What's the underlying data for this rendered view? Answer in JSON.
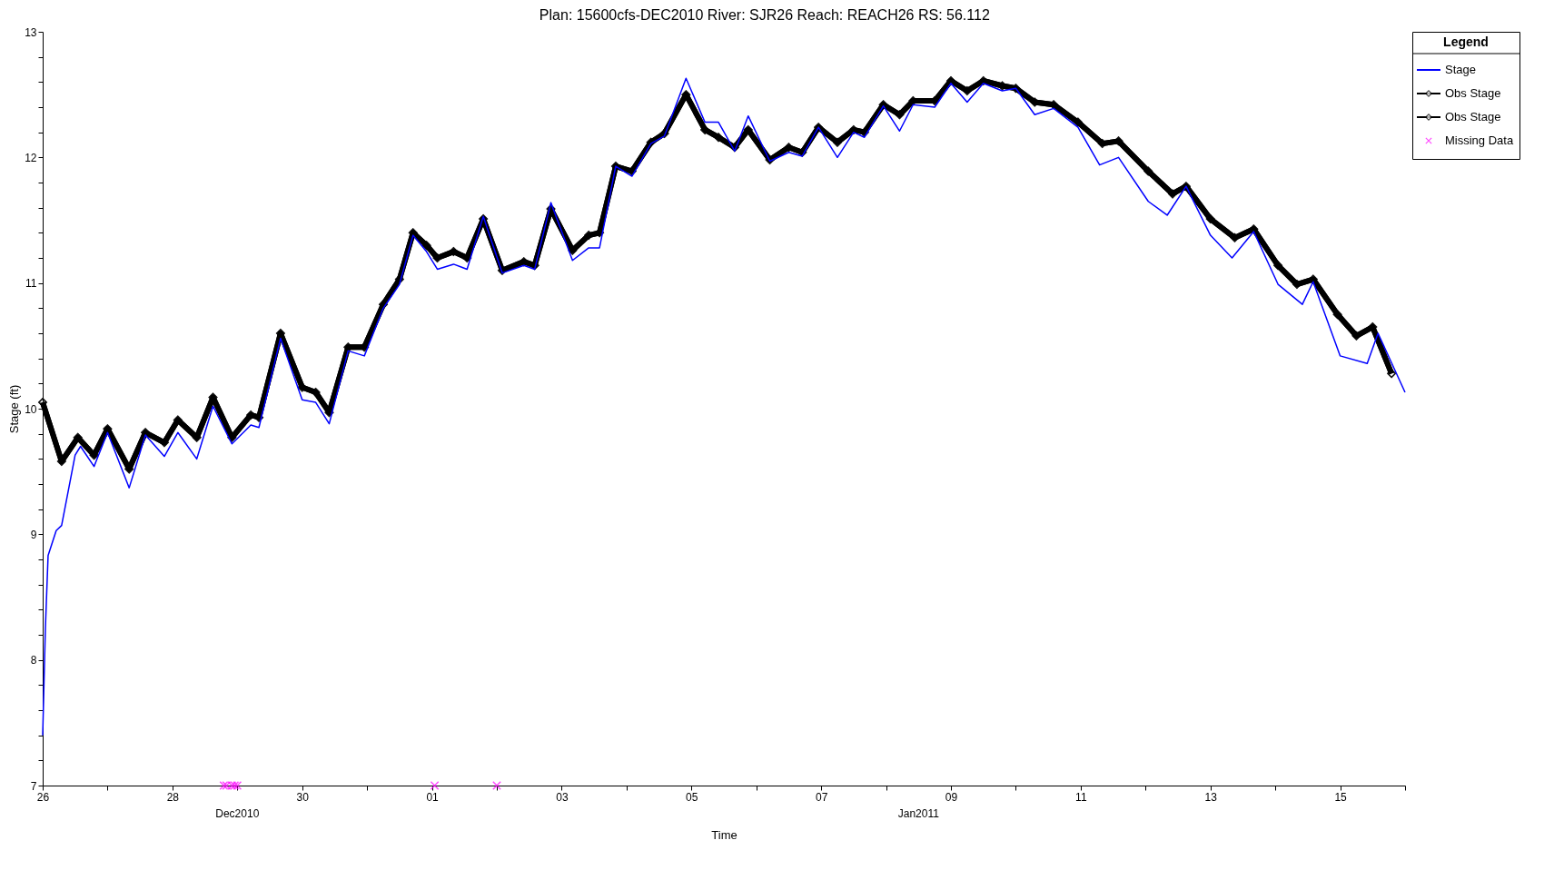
{
  "chart_data": {
    "type": "line",
    "title": "Plan: 15600cfs-DEC2010    River: SJR26    Reach: REACH26    RS: 56.112",
    "xlabel": "Time",
    "ylabel": "Stage (ft)",
    "legend_title": "Legend",
    "legend": "top right",
    "annotations": [
      "Dec2010",
      "Jan2011"
    ],
    "xlim": [
      "2010-12-26T00:00",
      "2011-01-16T00:00"
    ],
    "xticks": [
      {
        "value": "2010-12-26",
        "label": "26"
      },
      {
        "value": "2010-12-27",
        "label": null
      },
      {
        "value": "2010-12-28",
        "label": "28"
      },
      {
        "value": "2010-12-29",
        "label": null
      },
      {
        "value": "2010-12-30",
        "label": "30"
      },
      {
        "value": "2010-12-31",
        "label": null
      },
      {
        "value": "2011-01-01",
        "label": "01"
      },
      {
        "value": "2011-01-02",
        "label": null
      },
      {
        "value": "2011-01-03",
        "label": "03"
      },
      {
        "value": "2011-01-04",
        "label": null
      },
      {
        "value": "2011-01-05",
        "label": "05"
      },
      {
        "value": "2011-01-06",
        "label": null
      },
      {
        "value": "2011-01-07",
        "label": "07"
      },
      {
        "value": "2011-01-08",
        "label": null
      },
      {
        "value": "2011-01-09",
        "label": "09"
      },
      {
        "value": "2011-01-10",
        "label": null
      },
      {
        "value": "2011-01-11",
        "label": "11"
      },
      {
        "value": "2011-01-12",
        "label": null
      },
      {
        "value": "2011-01-13",
        "label": "13"
      },
      {
        "value": "2011-01-14",
        "label": null
      },
      {
        "value": "2011-01-15",
        "label": "15"
      },
      {
        "value": "2011-01-16",
        "label": null
      }
    ],
    "ylim": [
      7,
      13
    ],
    "yticks": [
      7,
      {
        "value": 7.2,
        "label": null
      },
      {
        "value": 7.4,
        "label": null
      },
      {
        "value": 7.6,
        "label": null
      },
      {
        "value": 7.8,
        "label": null
      },
      8,
      {
        "value": 8.2,
        "label": null
      },
      {
        "value": 8.4,
        "label": null
      },
      {
        "value": 8.6,
        "label": null
      },
      {
        "value": 8.8,
        "label": null
      },
      9,
      {
        "value": 9.2,
        "label": null
      },
      {
        "value": 9.4,
        "label": null
      },
      {
        "value": 9.6,
        "label": null
      },
      {
        "value": 9.8,
        "label": null
      },
      10,
      {
        "value": 10.2,
        "label": null
      },
      {
        "value": 10.4,
        "label": null
      },
      {
        "value": 10.6,
        "label": null
      },
      {
        "value": 10.8,
        "label": null
      },
      11,
      {
        "value": 11.2,
        "label": null
      },
      {
        "value": 11.4,
        "label": null
      },
      {
        "value": 11.6,
        "label": null
      },
      {
        "value": 11.8,
        "label": null
      },
      12,
      {
        "value": 12.2,
        "label": null
      },
      {
        "value": 12.4,
        "label": null
      },
      {
        "value": 12.6,
        "label": null
      },
      {
        "value": 12.8,
        "label": null
      },
      13
    ],
    "x": [
      "2010-12-26T00:00",
      "2010-12-26T07:00",
      "2010-12-26T13:00",
      "2010-12-26T19:00",
      "2010-12-27T00:00",
      "2010-12-27T08:00",
      "2010-12-27T14:00",
      "2010-12-27T21:00",
      "2010-12-28T02:00",
      "2010-12-28T09:00",
      "2010-12-28T15:00",
      "2010-12-28T22:00",
      "2010-12-29T05:00",
      "2010-12-29T08:00",
      "2010-12-29T16:00",
      "2010-12-30T00:00",
      "2010-12-30T05:00",
      "2010-12-30T10:00",
      "2010-12-30T17:00",
      "2010-12-30T23:00",
      "2010-12-31T06:00",
      "2010-12-31T12:00",
      "2010-12-31T17:00",
      "2010-12-31T22:00",
      "2011-01-01T02:00",
      "2011-01-01T08:00",
      "2011-01-01T13:00",
      "2011-01-01T19:00",
      "2011-01-02T02:00",
      "2011-01-02T10:00",
      "2011-01-02T14:00",
      "2011-01-02T20:00",
      "2011-01-03T04:00",
      "2011-01-03T10:00",
      "2011-01-03T14:00",
      "2011-01-03T20:00",
      "2011-01-04T02:00",
      "2011-01-04T09:00",
      "2011-01-04T14:00",
      "2011-01-04T22:00",
      "2011-01-05T05:00",
      "2011-01-05T10:00",
      "2011-01-05T16:00",
      "2011-01-05T21:00",
      "2011-01-06T05:00",
      "2011-01-06T12:00",
      "2011-01-06T17:00",
      "2011-01-06T23:00",
      "2011-01-07T06:00",
      "2011-01-07T12:00",
      "2011-01-07T16:00",
      "2011-01-07T23:00",
      "2011-01-08T05:00",
      "2011-01-08T10:00",
      "2011-01-08T18:00",
      "2011-01-09T00:00",
      "2011-01-09T06:00",
      "2011-01-09T12:00",
      "2011-01-09T19:00",
      "2011-01-10T00:00",
      "2011-01-10T07:00",
      "2011-01-10T14:00",
      "2011-01-10T23:00",
      "2011-01-11T08:00",
      "2011-01-11T14:00",
      "2011-01-12T01:00",
      "2011-01-12T10:00",
      "2011-01-12T15:00",
      "2011-01-13T00:00",
      "2011-01-13T09:00",
      "2011-01-13T16:00",
      "2011-01-14T01:00",
      "2011-01-14T08:00",
      "2011-01-14T14:00",
      "2011-01-14T23:00",
      "2011-01-15T06:00",
      "2011-01-15T12:00",
      "2011-01-15T19:00"
    ],
    "series": [
      {
        "name": "Stage",
        "color": "#0000ff",
        "line_style": "solid",
        "x": [
          "2010-12-26T00:00",
          "2010-12-26T01:00",
          "2010-12-26T02:00",
          "2010-12-26T05:00",
          "2010-12-26T07:00",
          "2010-12-26T12:00",
          "2010-12-26T14:00",
          "2010-12-26T19:00",
          "2010-12-27T00:00",
          "2010-12-27T08:00",
          "2010-12-27T14:00",
          "2010-12-27T21:00",
          "2010-12-28T02:00",
          "2010-12-28T09:00",
          "2010-12-28T15:00",
          "2010-12-28T22:00",
          "2010-12-29T05:00",
          "2010-12-29T08:00",
          "2010-12-29T16:00",
          "2010-12-30T00:00",
          "2010-12-30T05:00",
          "2010-12-30T10:00",
          "2010-12-30T17:00",
          "2010-12-30T23:00",
          "2010-12-31T06:00",
          "2010-12-31T12:00",
          "2010-12-31T17:00",
          "2010-12-31T22:00",
          "2011-01-01T02:00",
          "2011-01-01T08:00",
          "2011-01-01T13:00",
          "2011-01-01T19:00",
          "2011-01-02T02:00",
          "2011-01-02T10:00",
          "2011-01-02T14:00",
          "2011-01-02T20:00",
          "2011-01-03T04:00",
          "2011-01-03T10:00",
          "2011-01-03T14:00",
          "2011-01-03T20:00",
          "2011-01-04T02:00",
          "2011-01-04T09:00",
          "2011-01-04T14:00",
          "2011-01-04T22:00",
          "2011-01-05T05:00",
          "2011-01-05T10:00",
          "2011-01-05T16:00",
          "2011-01-05T21:00",
          "2011-01-06T05:00",
          "2011-01-06T12:00",
          "2011-01-06T17:00",
          "2011-01-06T23:00",
          "2011-01-07T06:00",
          "2011-01-07T12:00",
          "2011-01-07T16:00",
          "2011-01-07T23:00",
          "2011-01-08T05:00",
          "2011-01-08T10:00",
          "2011-01-08T18:00",
          "2011-01-09T00:00",
          "2011-01-09T06:00",
          "2011-01-09T12:00",
          "2011-01-09T19:00",
          "2011-01-10T00:00",
          "2011-01-10T07:00",
          "2011-01-10T14:00",
          "2011-01-10T23:00",
          "2011-01-11T07:00",
          "2011-01-11T14:00",
          "2011-01-12T01:00",
          "2011-01-12T08:00",
          "2011-01-12T15:00",
          "2011-01-13T00:00",
          "2011-01-13T08:00",
          "2011-01-13T16:00",
          "2011-01-14T01:00",
          "2011-01-14T10:00",
          "2011-01-14T14:00",
          "2011-01-15T00:00",
          "2011-01-15T10:00",
          "2011-01-15T14:00",
          "2011-01-16T00:00"
        ],
        "values": [
          7.4,
          8.25,
          8.83,
          9.03,
          9.07,
          9.63,
          9.7,
          9.54,
          9.81,
          9.37,
          9.79,
          9.62,
          9.81,
          9.6,
          10.02,
          9.72,
          9.87,
          9.85,
          10.56,
          10.07,
          10.05,
          9.88,
          10.46,
          10.42,
          10.8,
          10.99,
          11.38,
          11.25,
          11.11,
          11.15,
          11.11,
          11.53,
          11.08,
          11.14,
          11.11,
          11.64,
          11.18,
          11.28,
          11.28,
          11.93,
          11.85,
          12.11,
          12.17,
          12.63,
          12.28,
          12.28,
          12.05,
          12.33,
          11.97,
          12.04,
          12.01,
          12.24,
          12.0,
          12.2,
          12.16,
          12.41,
          12.21,
          12.42,
          12.4,
          12.59,
          12.44,
          12.59,
          12.53,
          12.55,
          12.34,
          12.39,
          12.24,
          11.94,
          12.0,
          11.65,
          11.54,
          11.77,
          11.38,
          11.2,
          11.41,
          10.99,
          10.83,
          11.01,
          10.42,
          10.36,
          10.6,
          10.13
        ]
      },
      {
        "name": "Obs Stage",
        "color": "#000000",
        "line_style": "solid",
        "marker": "diamond",
        "values": [
          10.05,
          9.58,
          9.77,
          9.63,
          9.84,
          9.52,
          9.81,
          9.73,
          9.91,
          9.77,
          10.09,
          9.77,
          9.95,
          9.93,
          10.6,
          10.17,
          10.13,
          9.97,
          10.49,
          10.49,
          10.83,
          11.03,
          11.4,
          11.3,
          11.2,
          11.25,
          11.2,
          11.51,
          11.1,
          11.17,
          11.14,
          11.59,
          11.26,
          11.38,
          11.4,
          11.93,
          11.89,
          12.12,
          12.19,
          12.5,
          12.22,
          12.16,
          12.08,
          12.22,
          11.98,
          12.08,
          12.04,
          12.24,
          12.12,
          12.22,
          12.2,
          12.42,
          12.34,
          12.45,
          12.45,
          12.61,
          12.53,
          12.61,
          12.57,
          12.55,
          12.44,
          12.42,
          12.28,
          12.11,
          12.13,
          11.89,
          11.71,
          11.77,
          11.51,
          11.36,
          11.43,
          11.14,
          10.99,
          11.03,
          10.75,
          10.58,
          10.65,
          10.28
        ]
      },
      {
        "name": "Obs Stage",
        "color": "#000000",
        "line_style": "solid",
        "marker": "diamond",
        "values": [
          10.05,
          9.58,
          9.77,
          9.63,
          9.84,
          9.52,
          9.81,
          9.73,
          9.91,
          9.77,
          10.09,
          9.77,
          9.95,
          9.93,
          10.6,
          10.17,
          10.13,
          9.97,
          10.49,
          10.49,
          10.83,
          11.03,
          11.4,
          11.3,
          11.2,
          11.25,
          11.2,
          11.51,
          11.1,
          11.17,
          11.14,
          11.59,
          11.26,
          11.38,
          11.4,
          11.93,
          11.89,
          12.12,
          12.19,
          12.5,
          12.22,
          12.16,
          12.08,
          12.22,
          11.98,
          12.08,
          12.04,
          12.24,
          12.12,
          12.22,
          12.2,
          12.42,
          12.34,
          12.45,
          12.45,
          12.61,
          12.53,
          12.61,
          12.57,
          12.55,
          12.44,
          12.42,
          12.28,
          12.11,
          12.13,
          11.89,
          11.71,
          11.77,
          11.51,
          11.36,
          11.43,
          11.14,
          10.99,
          11.03,
          10.75,
          10.58,
          10.65,
          10.28
        ]
      },
      {
        "name": "Missing Data",
        "type": "scatter",
        "color": "#ff00ff",
        "marker": "cross",
        "x": [
          "2010-12-28T19:00",
          "2010-12-28T20:00",
          "2010-12-28T22:00",
          "2010-12-28T23:00",
          "2010-12-29T00:00",
          "2011-01-01T01:00",
          "2011-01-02T00:00"
        ],
        "values": [
          7,
          7,
          7,
          7,
          7,
          7,
          7
        ]
      }
    ]
  }
}
